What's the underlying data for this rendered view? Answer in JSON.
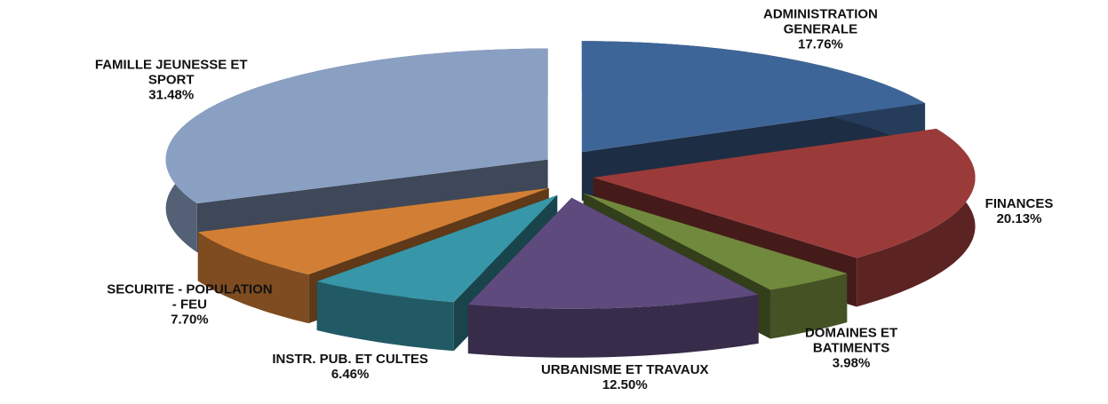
{
  "chart_data": {
    "type": "pie",
    "categories": [
      "ADMINISTRATION GENERALE",
      "FINANCES",
      "DOMAINES ET BATIMENTS",
      "URBANISME ET TRAVAUX",
      "INSTR. PUB. ET CULTES",
      "SECURITE - POPULATION - FEU",
      "FAMILLE JEUNESSE ET SPORT"
    ],
    "values": [
      17.76,
      20.13,
      3.98,
      12.5,
      6.46,
      7.7,
      31.48
    ],
    "value_labels": [
      "17.76%",
      "20.13%",
      "3.98%",
      "12.50%",
      "6.46%",
      "7.70%",
      "31.48%"
    ],
    "colors": [
      "#3e6597",
      "#9a3b3a",
      "#71893c",
      "#5e4a7d",
      "#3796a8",
      "#d27f35",
      "#8aa0c3"
    ]
  }
}
